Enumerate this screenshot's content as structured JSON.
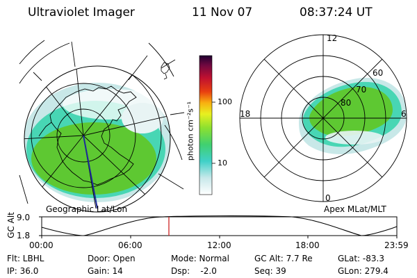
{
  "header": {
    "instrument": "Ultraviolet Imager",
    "date": "11 Nov 07",
    "time": "08:37:24 UT"
  },
  "left_panel": {
    "caption": "Geographic Lat/Lon"
  },
  "right_panel": {
    "caption": "Apex MLat/MLT",
    "mlt_labels": {
      "top": "12",
      "left": "18",
      "right": "6",
      "bottom": "0"
    },
    "mlat_labels": [
      "60",
      "70",
      "80"
    ]
  },
  "colorbar": {
    "unit_label": "photon cm⁻²s⁻¹",
    "ticks": [
      "100",
      "10"
    ]
  },
  "timeline": {
    "axis_label": "GC Alt",
    "y_ticks": [
      "9.0",
      "1.8"
    ],
    "x_ticks": [
      "00:00",
      "06:00",
      "12:00",
      "18:00",
      "23:59"
    ],
    "marker_color": "#cc2222"
  },
  "info": {
    "flt": "Flt: LBHL",
    "ip": "IP: 36.0",
    "door": "Door: Open",
    "gain": "Gain: 14",
    "mode": "Mode: Normal",
    "dsp": "Dsp:    -2.0",
    "gcalt": "GC Alt: 7.7 Re",
    "seq": "Seq: 39",
    "glat": "GLat: -83.3",
    "glon": "GLon: 279.4"
  },
  "colors": {
    "aurora_green": "#5ec832",
    "aurora_cyan": "#48d6b4",
    "aurora_light": "#c8e8e8"
  }
}
